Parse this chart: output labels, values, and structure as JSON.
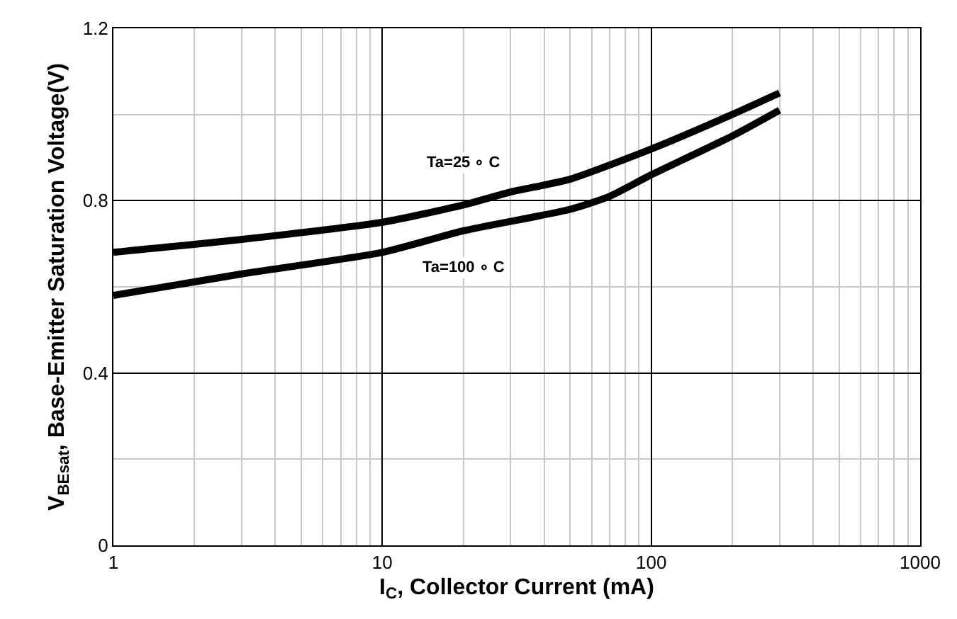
{
  "chart_data": {
    "type": "line",
    "xlabel": "I$_{C}$, Collector Current (mA)",
    "ylabel": "V$_{BEsat}$, Base-Emitter Saturation Voltage(V)",
    "log": "x",
    "xlim": [
      1,
      1000
    ],
    "xticks": [
      1,
      10,
      100,
      1000
    ],
    "ylim": [
      0,
      1.2
    ],
    "yticks": [
      0,
      {
        "value": 0.2,
        "label": null
      },
      0.4,
      {
        "value": 0.6,
        "label": null
      },
      0.8,
      {
        "value": 1.0,
        "label": null
      },
      1.2
    ],
    "grid": true,
    "legend": false,
    "marker": "none",
    "line_style": "solid",
    "series": [
      {
        "name": "Ta=25 ∘ C",
        "color": "#000000",
        "x": [
          1,
          3,
          10,
          20,
          30,
          50,
          100,
          200,
          300
        ],
        "values": [
          0.68,
          0.71,
          0.75,
          0.79,
          0.82,
          0.85,
          0.92,
          1.0,
          1.05
        ]
      },
      {
        "name": "Ta=100 ∘ C",
        "color": "#000000",
        "x": [
          1,
          3,
          10,
          20,
          50,
          70,
          100,
          200,
          300
        ],
        "values": [
          0.58,
          0.63,
          0.68,
          0.73,
          0.78,
          0.81,
          0.86,
          0.95,
          1.01
        ]
      }
    ]
  }
}
